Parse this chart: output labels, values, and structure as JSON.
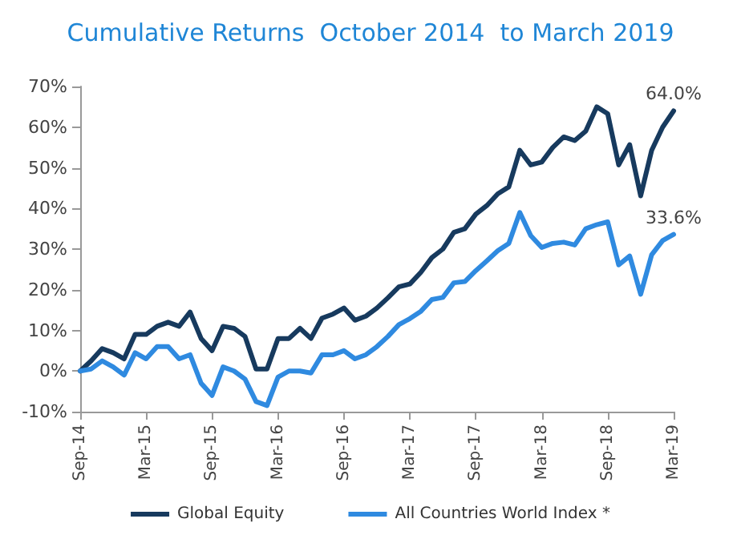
{
  "chart_data": {
    "type": "line",
    "title": "Cumulative Returns  October 2014  to March 2019",
    "categories": [
      "Sep-14",
      null,
      null,
      null,
      null,
      null,
      "Mar-15",
      null,
      null,
      null,
      null,
      null,
      "Sep-15",
      null,
      null,
      null,
      null,
      null,
      "Mar-16",
      null,
      null,
      null,
      null,
      null,
      "Sep-16",
      null,
      null,
      null,
      null,
      null,
      "Mar-17",
      null,
      null,
      null,
      null,
      null,
      "Sep-17",
      null,
      null,
      null,
      null,
      null,
      "Mar-18",
      null,
      null,
      null,
      null,
      null,
      "Sep-18",
      null,
      null,
      null,
      null,
      null,
      "Mar-19"
    ],
    "series": [
      {
        "name": "Global Equity",
        "color": "#173a5e",
        "values": [
          0,
          2.5,
          5.5,
          4.5,
          3,
          9,
          9,
          11,
          12,
          11,
          14.5,
          8,
          5,
          11,
          10.5,
          8.5,
          0.5,
          0.5,
          8,
          8,
          10.5,
          8,
          13,
          14,
          15.5,
          12.5,
          13.5,
          15.5,
          18,
          20.7,
          21.4,
          24.3,
          27.9,
          30,
          34.1,
          35,
          38.6,
          40.7,
          43.6,
          45.3,
          54.3,
          50.7,
          51.4,
          55,
          57.6,
          56.7,
          59,
          65,
          63.3,
          50.7,
          55.7,
          43.1,
          54.3,
          60,
          64.0
        ],
        "value_labels": [
          null,
          null,
          null,
          null,
          null,
          null,
          null,
          null,
          null,
          null,
          null,
          null,
          null,
          null,
          null,
          null,
          null,
          null,
          null,
          null,
          null,
          null,
          null,
          null,
          null,
          null,
          null,
          null,
          null,
          null,
          null,
          null,
          null,
          null,
          null,
          null,
          null,
          null,
          null,
          null,
          null,
          null,
          null,
          null,
          null,
          null,
          null,
          null,
          null,
          null,
          null,
          null,
          null,
          null,
          "64.0%"
        ]
      },
      {
        "name": "All Countries World Index *",
        "color": "#2f8ae0",
        "values": [
          0,
          0.5,
          2.5,
          1,
          -1,
          4.5,
          3,
          6,
          6,
          3,
          4,
          -3,
          -6,
          1,
          0,
          -2,
          -7.5,
          -8.5,
          -1.5,
          0,
          0,
          -0.5,
          4,
          4,
          5,
          3,
          4,
          6,
          8.5,
          11.4,
          12.9,
          14.7,
          17.6,
          18.1,
          21.7,
          22,
          24.7,
          27.1,
          29.6,
          31.4,
          39,
          33.3,
          30.4,
          31.4,
          31.7,
          31,
          35,
          36,
          36.7,
          26.1,
          28.3,
          18.9,
          28.6,
          32.1,
          33.6
        ],
        "value_labels": [
          null,
          null,
          null,
          null,
          null,
          null,
          null,
          null,
          null,
          null,
          null,
          null,
          null,
          null,
          null,
          null,
          null,
          null,
          null,
          null,
          null,
          null,
          null,
          null,
          null,
          null,
          null,
          null,
          null,
          null,
          null,
          null,
          null,
          null,
          null,
          null,
          null,
          null,
          null,
          null,
          null,
          null,
          null,
          null,
          null,
          null,
          null,
          null,
          null,
          null,
          null,
          null,
          null,
          null,
          "33.6%"
        ]
      }
    ],
    "ylim": [
      -10,
      70
    ],
    "yticks": [
      {
        "value": -10,
        "label": "-10%"
      },
      {
        "value": 0,
        "label": "0%"
      },
      {
        "value": 10,
        "label": "10%"
      },
      {
        "value": 20,
        "label": "20%"
      },
      {
        "value": 30,
        "label": "30%"
      },
      {
        "value": 40,
        "label": "40%"
      },
      {
        "value": 50,
        "label": "50%"
      },
      {
        "value": 60,
        "label": "60%"
      },
      {
        "value": 70,
        "label": "70%"
      }
    ],
    "grid": false,
    "legend": "bottom",
    "marker": "none",
    "line_style": "solid"
  }
}
